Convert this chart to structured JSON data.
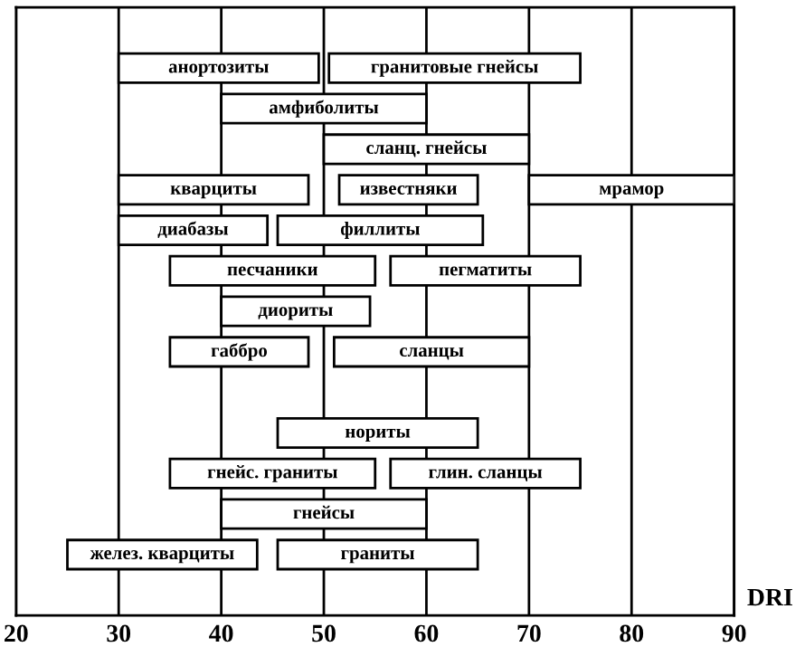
{
  "chart_data": {
    "type": "bar",
    "orientation": "horizontal",
    "xlabel": "DRI",
    "categories": [
      null,
      null,
      null,
      null,
      null,
      null,
      null,
      null,
      null,
      null,
      null,
      null,
      null,
      null,
      null
    ],
    "series": [
      {
        "color": "#ffffff",
        "base": [
          null,
          30,
          40,
          50,
          30,
          30,
          35,
          40,
          35,
          null,
          45.5,
          35,
          40,
          25,
          null
        ],
        "values": [
          null,
          19.5,
          20,
          20,
          18.5,
          14.5,
          20,
          14.5,
          13.5,
          null,
          19.5,
          20,
          20,
          18.5,
          null
        ],
        "value_labels": [
          null,
          "анортозиты",
          "амфиболиты",
          "сланц. гнейсы",
          "кварциты",
          "диабазы",
          "песчаники",
          "диориты",
          "габбро",
          null,
          "нориты",
          "гнейс. граниты",
          "гнейсы",
          "желез. кварциты",
          null
        ]
      },
      {
        "color": "#ffffff",
        "base": [
          null,
          50.5,
          null,
          null,
          51.5,
          45.5,
          56.5,
          null,
          51,
          null,
          null,
          56.5,
          null,
          45.5,
          null
        ],
        "values": [
          null,
          24.5,
          null,
          null,
          13.5,
          20,
          18.5,
          null,
          19,
          null,
          null,
          18.5,
          null,
          19.5,
          null
        ],
        "value_labels": [
          null,
          "гранитовые гнейсы",
          null,
          null,
          "известняки",
          "филлиты",
          "пегматиты",
          null,
          "сланцы",
          null,
          null,
          "глин. сланцы",
          null,
          "граниты",
          null
        ]
      },
      {
        "color": "#ffffff",
        "base": [
          null,
          null,
          null,
          null,
          70,
          null,
          null,
          null,
          null,
          null,
          null,
          null,
          null,
          null,
          null
        ],
        "values": [
          null,
          null,
          null,
          null,
          20,
          null,
          null,
          null,
          null,
          null,
          null,
          null,
          null,
          null,
          null
        ],
        "value_labels": [
          null,
          null,
          null,
          null,
          "мрамор",
          null,
          null,
          null,
          null,
          null,
          null,
          null,
          null,
          null,
          null
        ]
      }
    ],
    "xlim": [
      20,
      90
    ],
    "xticks": [
      20,
      30,
      40,
      50,
      60,
      70,
      80,
      90
    ],
    "grid": "x",
    "tick_labels": "x",
    "legend": false
  }
}
